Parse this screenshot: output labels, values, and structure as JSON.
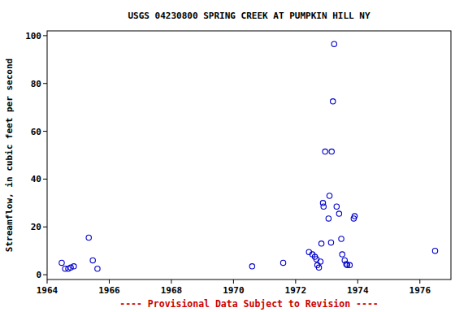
{
  "chart_data": {
    "type": "scatter",
    "title": "USGS 04230800 SPRING CREEK AT PUMPKIN HILL NY",
    "y_label": "Streamflow, in cubic feet per second",
    "annotations": [
      "---- Provisional Data Subject to Revision ----"
    ],
    "x": [
      1964.47,
      1964.58,
      1964.68,
      1964.76,
      1964.86,
      1965.34,
      1965.47,
      1965.62,
      1970.6,
      1971.6,
      1972.43,
      1972.54,
      1972.62,
      1972.67,
      1972.7,
      1972.75,
      1972.8,
      1972.83,
      1972.88,
      1972.9,
      1972.95,
      1973.06,
      1973.09,
      1973.14,
      1973.16,
      1973.2,
      1973.24,
      1973.32,
      1973.4,
      1973.47,
      1973.5,
      1973.58,
      1973.63,
      1973.66,
      1973.74,
      1973.87,
      1973.9,
      1976.49
    ],
    "values": [
      5,
      2.5,
      2.5,
      3,
      3.5,
      15.5,
      6,
      2.5,
      3.5,
      5,
      9.5,
      8.5,
      7.5,
      6.5,
      4,
      3,
      5.5,
      13,
      30,
      28.5,
      51.5,
      23.5,
      33,
      13.5,
      51.5,
      72.5,
      96.5,
      28.5,
      25.5,
      15,
      8.5,
      6,
      4.5,
      4,
      4,
      23.5,
      24.5,
      10
    ],
    "color": "#0000cc",
    "marker": "circle-open",
    "xlim": [
      1964,
      1977
    ],
    "ylim": [
      -2,
      102
    ],
    "xticks": [
      1964,
      1966,
      1968,
      1970,
      1972,
      1974,
      1976
    ],
    "yticks": [
      0,
      20,
      40,
      60,
      80,
      100
    ],
    "grid": false
  }
}
